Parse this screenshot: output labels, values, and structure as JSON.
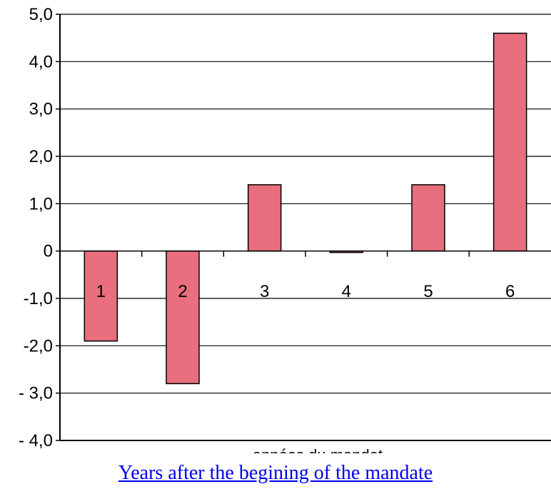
{
  "chart_data": {
    "type": "bar",
    "categories": [
      "1",
      "2",
      "3",
      "4",
      "5",
      "6"
    ],
    "values": [
      -1.9,
      -2.8,
      1.4,
      -0.03,
      1.4,
      4.6
    ],
    "yticks": [
      "5,0",
      "4,0",
      "3,0",
      "2,0",
      "1,0",
      "0",
      "-1,0",
      "-2,0",
      "- 3,0",
      "- 4,0"
    ],
    "ylim": [
      -4,
      5
    ],
    "xlabel": "années du mandat",
    "grid": true,
    "bar_color": "#e96f7e"
  },
  "caption": "Years after the begining of the mandate"
}
